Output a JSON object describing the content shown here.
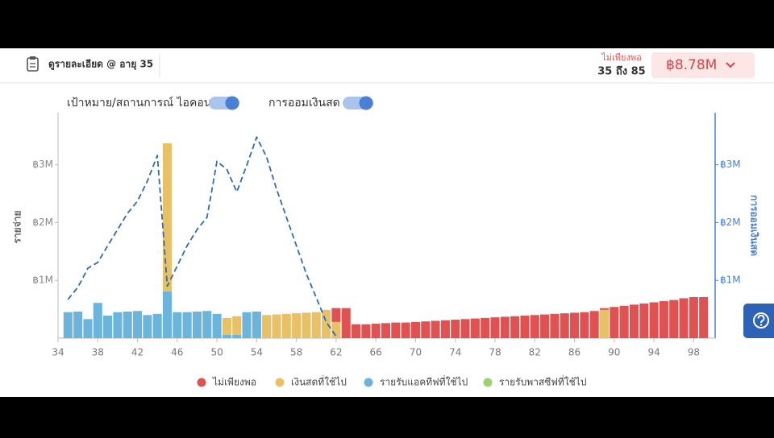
{
  "header": {
    "link": "ดูรายละเอียด @ อายุ 35",
    "status": "ไม่เพียงพอ",
    "range": "35 ถึง 85",
    "amount": "฿8.78M"
  },
  "controls": {
    "toggles": [
      "เป้าหมาย/สถานการณ์ ไอคอน",
      "การออมเงินสด"
    ]
  },
  "chart_data": {
    "type": "bar",
    "stacked": true,
    "y_label": "รายจ่าย",
    "y2_label": "การออมเงินสด",
    "x": [
      35,
      36,
      37,
      38,
      39,
      40,
      41,
      42,
      43,
      44,
      45,
      46,
      47,
      48,
      49,
      50,
      51,
      52,
      53,
      54,
      55,
      56,
      57,
      58,
      59,
      60,
      61,
      62,
      63,
      64,
      65,
      66,
      67,
      68,
      69,
      70,
      71,
      72,
      73,
      74,
      75,
      76,
      77,
      78,
      79,
      80,
      81,
      82,
      83,
      84,
      85,
      86,
      87,
      88,
      89,
      90,
      91,
      92,
      93,
      94,
      95,
      96,
      97,
      98,
      99
    ],
    "xlim": [
      34,
      100
    ],
    "xticks": [
      34,
      38,
      42,
      46,
      50,
      54,
      58,
      62,
      66,
      70,
      74,
      78,
      82,
      86,
      90,
      94,
      98
    ],
    "ylim": [
      0,
      3.9
    ],
    "yticks": [
      {
        "value": 1,
        "label": "฿1M"
      },
      {
        "value": 2,
        "label": "฿2M"
      },
      {
        "value": 3,
        "label": "฿3M"
      }
    ],
    "y2lim": [
      0,
      3.9
    ],
    "y2ticks": [
      {
        "value": 1,
        "label": "฿1M"
      },
      {
        "value": 2,
        "label": "฿2M"
      },
      {
        "value": 3,
        "label": "฿3M"
      }
    ],
    "series": [
      {
        "name": "ไม่เพียงพอ",
        "color": "#e05252",
        "values": [
          null,
          null,
          null,
          null,
          null,
          null,
          null,
          null,
          null,
          null,
          null,
          null,
          null,
          null,
          null,
          null,
          null,
          null,
          null,
          null,
          null,
          null,
          null,
          null,
          null,
          null,
          null,
          0.24,
          0.52,
          0.24,
          0.24,
          0.25,
          0.26,
          0.27,
          0.27,
          0.28,
          0.29,
          0.3,
          0.31,
          0.32,
          0.33,
          0.34,
          0.35,
          0.36,
          0.37,
          0.38,
          0.39,
          0.4,
          0.41,
          0.42,
          0.43,
          0.44,
          0.45,
          0.47,
          0.03,
          0.54,
          0.56,
          0.58,
          0.6,
          0.62,
          0.64,
          0.66,
          0.69,
          0.71,
          0.71
        ]
      },
      {
        "name": "เงินสดที่ใช้ไป",
        "color": "#e8c167",
        "values": [
          null,
          null,
          null,
          null,
          null,
          null,
          null,
          null,
          null,
          null,
          2.56,
          null,
          null,
          null,
          null,
          null,
          0.29,
          0.32,
          null,
          null,
          0.4,
          0.41,
          0.42,
          0.43,
          0.44,
          0.45,
          0.49,
          0.28,
          null,
          null,
          null,
          null,
          null,
          null,
          null,
          null,
          null,
          null,
          null,
          null,
          null,
          null,
          null,
          null,
          null,
          null,
          null,
          null,
          null,
          null,
          null,
          null,
          null,
          null,
          0.49,
          null,
          null,
          null,
          null,
          null,
          null,
          null,
          null,
          null,
          null
        ]
      },
      {
        "name": "รายรับแอคทีฟที่ใช้ไป",
        "color": "#6bb5dd",
        "values": [
          0.45,
          0.46,
          0.33,
          0.61,
          0.39,
          0.45,
          0.46,
          0.47,
          0.4,
          0.42,
          0.81,
          0.45,
          0.45,
          0.46,
          0.47,
          0.42,
          0.06,
          0.06,
          0.45,
          0.46,
          null,
          null,
          null,
          null,
          null,
          null,
          null,
          null,
          null,
          null,
          null,
          null,
          null,
          null,
          null,
          null,
          null,
          null,
          null,
          null,
          null,
          null,
          null,
          null,
          null,
          null,
          null,
          null,
          null,
          null,
          null,
          null,
          null,
          null,
          null,
          null,
          null,
          null,
          null,
          null,
          null,
          null,
          null,
          null,
          null
        ]
      },
      {
        "name": "รายรับพาสซีฟที่ใช้ไป",
        "color": "#9dd36d",
        "values": [
          null,
          null,
          null,
          null,
          null,
          null,
          null,
          null,
          null,
          null,
          null,
          null,
          null,
          null,
          null,
          null,
          null,
          null,
          null,
          null,
          null,
          null,
          null,
          null,
          null,
          null,
          null,
          null,
          null,
          null,
          null,
          null,
          null,
          null,
          null,
          null,
          null,
          null,
          null,
          null,
          null,
          null,
          null,
          null,
          null,
          null,
          null,
          null,
          null,
          null,
          null,
          null,
          null,
          null,
          null,
          null,
          null,
          null,
          null,
          null,
          null,
          null,
          null,
          null,
          null
        ]
      }
    ],
    "savings": {
      "axis": "y2",
      "color": "#2f6bb0",
      "dashed": true,
      "x": [
        35,
        36,
        37,
        38,
        39,
        40,
        41,
        42,
        43,
        44,
        45,
        46,
        47,
        48,
        49,
        50,
        51,
        52,
        53,
        54,
        55,
        56,
        57,
        58,
        59,
        60,
        61,
        62
      ],
      "values": [
        0.67,
        0.88,
        1.21,
        1.31,
        1.6,
        1.88,
        2.16,
        2.37,
        2.72,
        3.16,
        0.9,
        1.25,
        1.6,
        1.88,
        2.09,
        3.06,
        2.92,
        2.53,
        2.99,
        3.48,
        3.13,
        2.58,
        2.09,
        1.6,
        1.11,
        0.7,
        0.28,
        0.03
      ]
    }
  }
}
